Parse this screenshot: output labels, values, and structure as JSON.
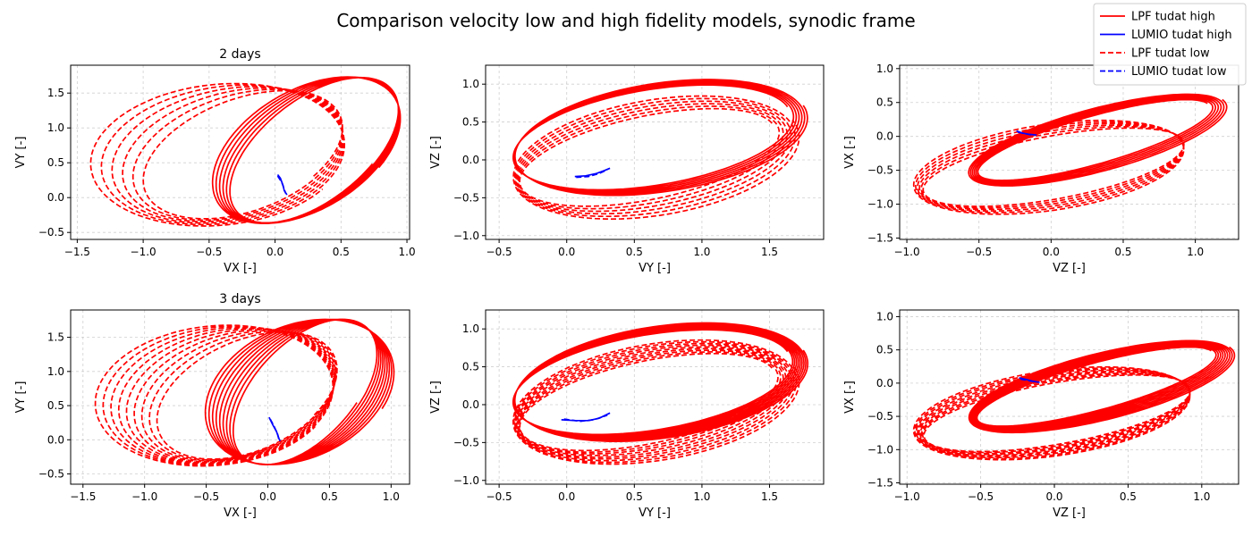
{
  "figure": {
    "title": "Comparison velocity low and high fidelity models, synodic frame",
    "legend_position": "top-right",
    "legend": [
      {
        "label": "LPF tudat high",
        "color": "#ff0000",
        "style": "solid"
      },
      {
        "label": "LUMIO tudat high",
        "color": "#0000ff",
        "style": "solid"
      },
      {
        "label": "LPF tudat low",
        "color": "#ff0000",
        "style": "dashed"
      },
      {
        "label": "LUMIO tudat low",
        "color": "#0000ff",
        "style": "dashed"
      }
    ]
  },
  "chart_data": [
    {
      "type": "line",
      "title": "2 days",
      "xlabel": "VX [-]",
      "ylabel": "VY [-]",
      "xlim": [
        -1.55,
        1.02
      ],
      "ylim": [
        -0.6,
        1.9
      ],
      "xticks": [
        -1.5,
        -1.0,
        -0.5,
        0.0,
        0.5,
        1.0
      ],
      "yticks": [
        -0.5,
        0.0,
        0.5,
        1.0,
        1.5
      ],
      "xtick_labels": [
        "−1.5",
        "−1.0",
        "−0.5",
        "0.0",
        "0.5",
        "1.0"
      ],
      "ytick_labels": [
        "−0.5",
        "0.0",
        "0.5",
        "1.0",
        "1.5"
      ],
      "grid": true,
      "series": [
        {
          "color": "#ff0000",
          "style": "solid",
          "center_x": [
            0.23,
            0.3
          ],
          "center_y": 0.68,
          "a": [
            0.61,
            0.48
          ],
          "b": [
            1.12,
            1.12
          ],
          "rot": -0.42,
          "loops": 6,
          "points": []
        },
        {
          "color": "#ff0000",
          "style": "dashed",
          "center_x": [
            -0.22,
            -0.45
          ],
          "center_y": 0.62,
          "a": [
            0.6,
            0.95
          ],
          "b": [
            1.0,
            1.06
          ],
          "rot": -0.55,
          "loops": 6,
          "points": []
        },
        {
          "color": "#0000ff",
          "style": "solid",
          "points": [
            [
              0.02,
              0.33
            ],
            [
              0.04,
              0.28
            ],
            [
              0.06,
              0.18
            ],
            [
              0.07,
              0.1
            ],
            [
              0.09,
              0.04
            ]
          ]
        },
        {
          "color": "#0000ff",
          "style": "dashed",
          "points": [
            [
              0.02,
              0.31
            ],
            [
              0.05,
              0.22
            ],
            [
              0.07,
              0.12
            ],
            [
              0.08,
              0.06
            ]
          ]
        }
      ]
    },
    {
      "type": "line",
      "title": "",
      "xlabel": "VY [-]",
      "ylabel": "VZ [-]",
      "xlim": [
        -0.6,
        1.9
      ],
      "ylim": [
        -1.05,
        1.25
      ],
      "xticks": [
        -0.5,
        0.0,
        0.5,
        1.0,
        1.5
      ],
      "yticks": [
        -1.0,
        -0.5,
        0.0,
        0.5,
        1.0
      ],
      "xtick_labels": [
        "−0.5",
        "0.0",
        "0.5",
        "1.0",
        "1.5"
      ],
      "ytick_labels": [
        "−1.0",
        "−0.5",
        "0.0",
        "0.5",
        "1.0"
      ],
      "grid": true,
      "series": [
        {
          "color": "#ff0000",
          "style": "solid",
          "center_x": [
            0.63,
            0.7
          ],
          "center_y": 0.3,
          "a": [
            1.08,
            1.13
          ],
          "b": [
            0.6,
            0.7
          ],
          "rot": 0.38,
          "loops": 6,
          "points": []
        },
        {
          "color": "#ff0000",
          "style": "dashed",
          "center_x": [
            0.6,
            0.66
          ],
          "center_y": 0.04,
          "a": [
            1.02,
            1.12
          ],
          "b": [
            0.5,
            0.75
          ],
          "rot": 0.45,
          "loops": 6,
          "points": []
        },
        {
          "color": "#0000ff",
          "style": "solid",
          "points": [
            [
              0.06,
              -0.22
            ],
            [
              0.14,
              -0.21
            ],
            [
              0.22,
              -0.18
            ],
            [
              0.28,
              -0.14
            ],
            [
              0.32,
              -0.11
            ]
          ]
        },
        {
          "color": "#0000ff",
          "style": "dashed",
          "points": [
            [
              0.07,
              -0.23
            ],
            [
              0.16,
              -0.22
            ],
            [
              0.24,
              -0.18
            ],
            [
              0.3,
              -0.13
            ]
          ]
        }
      ]
    },
    {
      "type": "line",
      "title": "",
      "xlabel": "VZ [-]",
      "ylabel": "VX [-]",
      "xlim": [
        -1.05,
        1.3
      ],
      "ylim": [
        -1.52,
        1.05
      ],
      "xticks": [
        -1.0,
        -0.5,
        0.0,
        0.5,
        1.0
      ],
      "yticks": [
        -1.5,
        -1.0,
        -0.5,
        0.0,
        0.5,
        1.0
      ],
      "xtick_labels": [
        "−1.0",
        "−0.5",
        "0.0",
        "0.5",
        "1.0"
      ],
      "ytick_labels": [
        "−1.5",
        "−1.0",
        "−0.5",
        "0.0",
        "0.5",
        "1.0"
      ],
      "grid": true,
      "series": [
        {
          "color": "#ff0000",
          "style": "solid",
          "center_x": [
            0.3,
            0.32
          ],
          "center_y": -0.05,
          "a": [
            0.95,
            1.05
          ],
          "b": [
            0.3,
            0.42
          ],
          "rot": 0.6,
          "loops": 6,
          "points": []
        },
        {
          "color": "#ff0000",
          "style": "dashed",
          "center_x": [
            0.02,
            -0.02
          ],
          "center_y": -0.45,
          "a": [
            0.98,
            1.0
          ],
          "b": [
            0.42,
            0.62
          ],
          "rot": 0.45,
          "loops": 6,
          "points": []
        },
        {
          "color": "#0000ff",
          "style": "solid",
          "points": [
            [
              -0.24,
              0.08
            ],
            [
              -0.2,
              0.05
            ],
            [
              -0.15,
              0.03
            ],
            [
              -0.1,
              0.02
            ]
          ]
        },
        {
          "color": "#0000ff",
          "style": "dashed",
          "points": [
            [
              -0.23,
              0.06
            ],
            [
              -0.18,
              0.04
            ],
            [
              -0.13,
              0.02
            ]
          ]
        }
      ]
    },
    {
      "type": "line",
      "title": "3 days",
      "xlabel": "VX [-]",
      "ylabel": "VY [-]",
      "xlim": [
        -1.6,
        1.15
      ],
      "ylim": [
        -0.65,
        1.9
      ],
      "xticks": [
        -1.5,
        -1.0,
        -0.5,
        0.0,
        0.5,
        1.0
      ],
      "yticks": [
        -0.5,
        0.0,
        0.5,
        1.0,
        1.5
      ],
      "xtick_labels": [
        "−1.5",
        "−1.0",
        "−0.5",
        "0.0",
        "0.5",
        "1.0"
      ],
      "ytick_labels": [
        "−0.5",
        "0.0",
        "0.5",
        "1.0",
        "1.5"
      ],
      "grid": true,
      "series": [
        {
          "color": "#ff0000",
          "style": "solid",
          "center_x": [
            0.25,
            0.3
          ],
          "center_y": 0.7,
          "a": [
            0.72,
            0.45
          ],
          "b": [
            1.1,
            1.12
          ],
          "rot": -0.35,
          "loops": 9,
          "points": []
        },
        {
          "color": "#ff0000",
          "style": "dashed",
          "center_x": [
            -0.15,
            -0.45
          ],
          "center_y": 0.65,
          "a": [
            0.6,
            0.95
          ],
          "b": [
            1.0,
            1.06
          ],
          "rot": -0.5,
          "loops": 9,
          "points": []
        },
        {
          "color": "#0000ff",
          "style": "solid",
          "points": [
            [
              0.01,
              0.33
            ],
            [
              0.04,
              0.22
            ],
            [
              0.07,
              0.12
            ],
            [
              0.09,
              0.02
            ],
            [
              0.1,
              -0.02
            ]
          ]
        },
        {
          "color": "#0000ff",
          "style": "dashed",
          "points": [
            [
              0.02,
              0.3
            ],
            [
              0.05,
              0.2
            ],
            [
              0.08,
              0.08
            ],
            [
              0.09,
              0.0
            ]
          ]
        }
      ]
    },
    {
      "type": "line",
      "title": "",
      "xlabel": "VY [-]",
      "ylabel": "VZ [-]",
      "xlim": [
        -0.6,
        1.9
      ],
      "ylim": [
        -1.05,
        1.25
      ],
      "xticks": [
        -0.5,
        0.0,
        0.5,
        1.0,
        1.5
      ],
      "yticks": [
        -1.0,
        -0.5,
        0.0,
        0.5,
        1.0
      ],
      "xtick_labels": [
        "−0.5",
        "0.0",
        "0.5",
        "1.0",
        "1.5"
      ],
      "ytick_labels": [
        "−1.0",
        "−0.5",
        "0.0",
        "0.5",
        "1.0"
      ],
      "grid": true,
      "series": [
        {
          "color": "#ff0000",
          "style": "solid",
          "center_x": [
            0.63,
            0.7
          ],
          "center_y": 0.3,
          "a": [
            1.08,
            1.13
          ],
          "b": [
            0.6,
            0.72
          ],
          "rot": 0.38,
          "loops": 9,
          "points": []
        },
        {
          "color": "#ff0000",
          "style": "dashed",
          "center_x": [
            0.6,
            0.66
          ],
          "center_y": 0.04,
          "a": [
            1.02,
            1.12
          ],
          "b": [
            0.5,
            0.75
          ],
          "rot": 0.45,
          "loops": 9,
          "points": []
        },
        {
          "color": "#0000ff",
          "style": "solid",
          "points": [
            [
              -0.04,
              -0.2
            ],
            [
              0.06,
              -0.21
            ],
            [
              0.16,
              -0.21
            ],
            [
              0.24,
              -0.18
            ],
            [
              0.32,
              -0.11
            ]
          ]
        },
        {
          "color": "#0000ff",
          "style": "dashed",
          "points": [
            [
              -0.02,
              -0.19
            ],
            [
              0.1,
              -0.22
            ],
            [
              0.2,
              -0.2
            ],
            [
              0.3,
              -0.14
            ]
          ]
        }
      ]
    },
    {
      "type": "line",
      "title": "",
      "xlabel": "VZ [-]",
      "ylabel": "VX [-]",
      "xlim": [
        -1.05,
        1.25
      ],
      "ylim": [
        -1.52,
        1.1
      ],
      "xticks": [
        -1.0,
        -0.5,
        0.0,
        0.5,
        1.0
      ],
      "yticks": [
        -1.5,
        -1.0,
        -0.5,
        0.0,
        0.5,
        1.0
      ],
      "xtick_labels": [
        "−1.0",
        "−0.5",
        "0.0",
        "0.5",
        "1.0"
      ],
      "ytick_labels": [
        "−1.5",
        "−1.0",
        "−0.5",
        "0.0",
        "0.5",
        "1.0"
      ],
      "grid": true,
      "series": [
        {
          "color": "#ff0000",
          "style": "solid",
          "center_x": [
            0.28,
            0.32
          ],
          "center_y": -0.05,
          "a": [
            0.95,
            1.05
          ],
          "b": [
            0.3,
            0.45
          ],
          "rot": 0.6,
          "loops": 9,
          "points": []
        },
        {
          "color": "#ff0000",
          "style": "dashed",
          "center_x": [
            0.02,
            -0.02
          ],
          "center_y": -0.45,
          "a": [
            0.98,
            1.0
          ],
          "b": [
            0.42,
            0.62
          ],
          "rot": 0.45,
          "loops": 9,
          "points": []
        },
        {
          "color": "#0000ff",
          "style": "solid",
          "points": [
            [
              -0.24,
              0.08
            ],
            [
              -0.2,
              0.06
            ],
            [
              -0.15,
              0.03
            ],
            [
              -0.1,
              0.01
            ]
          ]
        },
        {
          "color": "#0000ff",
          "style": "dashed",
          "points": [
            [
              -0.23,
              0.06
            ],
            [
              -0.18,
              0.04
            ],
            [
              -0.13,
              0.02
            ]
          ]
        }
      ]
    }
  ]
}
